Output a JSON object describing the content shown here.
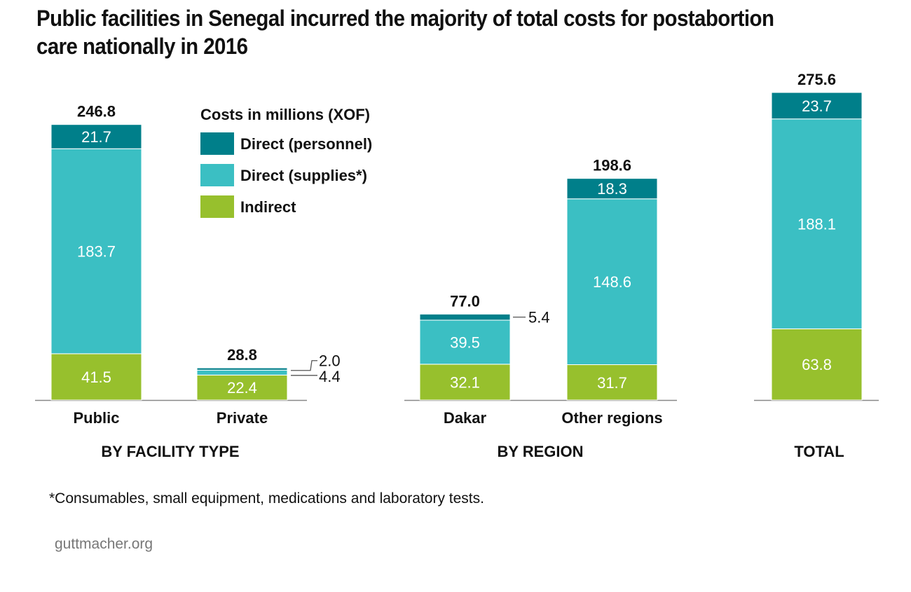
{
  "title": "Public facilities in Senegal incurred the majority of total costs for postabortion care nationally in 2016",
  "footnote": "*Consumables, small equipment, medications and laboratory tests.",
  "source": "guttmacher.org",
  "colors": {
    "personnel": "#007f8a",
    "supplies": "#3bbfc3",
    "indirect": "#97c02d",
    "axis": "#888888"
  },
  "chart_data": {
    "type": "bar",
    "stacked": true,
    "title": "Public facilities in Senegal incurred the majority of total costs for postabortion care nationally in 2016",
    "unit": "Costs in millions (XOF)",
    "legend": {
      "title": "Costs in millions (XOF)",
      "placement": "top-center",
      "entries": [
        {
          "key": "personnel",
          "label": "Direct (personnel)"
        },
        {
          "key": "supplies",
          "label": "Direct (supplies*)"
        },
        {
          "key": "indirect",
          "label": "Indirect"
        }
      ]
    },
    "groups": [
      {
        "label": "BY FACILITY TYPE",
        "categories": [
          "Public",
          "Private"
        ]
      },
      {
        "label": "BY REGION",
        "categories": [
          "Dakar",
          "Other regions"
        ]
      },
      {
        "label": "TOTAL",
        "categories": [
          ""
        ]
      }
    ],
    "categories": [
      "Public",
      "Private",
      "Dakar",
      "Other regions",
      "Total"
    ],
    "series": [
      {
        "name": "Indirect",
        "key": "indirect",
        "values": [
          41.5,
          22.4,
          32.1,
          31.7,
          63.8
        ]
      },
      {
        "name": "Direct (supplies*)",
        "key": "supplies",
        "values": [
          183.7,
          4.4,
          39.5,
          148.6,
          188.1
        ]
      },
      {
        "name": "Direct (personnel)",
        "key": "personnel",
        "values": [
          21.7,
          2.0,
          5.4,
          18.3,
          23.7
        ]
      }
    ],
    "totals": [
      "246.8",
      "28.8",
      "77.0",
      "198.6",
      "275.6"
    ],
    "labels": {
      "indirect": [
        "41.5",
        "22.4",
        "32.1",
        "31.7",
        "63.8"
      ],
      "supplies": [
        "183.7",
        "4.4",
        "39.5",
        "148.6",
        "188.1"
      ],
      "personnel": [
        "21.7",
        "2.0",
        "5.4",
        "18.3",
        "23.7"
      ]
    },
    "xlabel": "",
    "ylabel": "",
    "ylim": [
      0,
      275.6
    ],
    "grid": false
  }
}
